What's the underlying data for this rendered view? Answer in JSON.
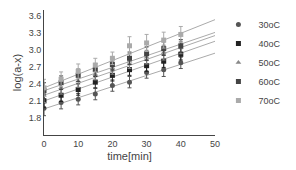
{
  "chart_data": {
    "type": "scatter",
    "xlabel": "time[min]",
    "ylabel": "log(a-x)",
    "xlim": [
      0,
      50
    ],
    "ylim": [
      1.5,
      3.7
    ],
    "xticks": [
      0,
      10,
      20,
      30,
      40,
      50
    ],
    "yticks": [
      1.8,
      2.1,
      2.4,
      2.7,
      {
        "value": 3.0,
        "label": "3.0"
      },
      3.3,
      3.6
    ],
    "grid": false,
    "legend": "right",
    "x": [
      0,
      5,
      10,
      15,
      20,
      25,
      30,
      35,
      40
    ],
    "series": [
      {
        "name": "30oC",
        "color": "#555555",
        "marker": "circle",
        "values": [
          1.97,
          2.07,
          2.13,
          2.22,
          2.37,
          2.43,
          2.6,
          2.65,
          2.77
        ],
        "yerr": [
          0.13,
          0.11,
          0.1,
          0.1,
          0.1,
          0.1,
          0.1,
          0.12,
          0.1
        ],
        "trend": {
          "slope": 0.0196,
          "intercept": 1.96,
          "color": "#aaaaaa"
        }
      },
      {
        "name": "40oC",
        "color": "#222222",
        "marker": "square",
        "values": [
          2.1,
          2.2,
          2.3,
          2.43,
          2.55,
          2.65,
          2.72,
          2.8,
          2.92
        ],
        "yerr": [
          0.12,
          0.11,
          0.1,
          0.1,
          0.1,
          0.1,
          0.1,
          0.11,
          0.1
        ],
        "trend": {
          "slope": 0.021,
          "intercept": 2.1,
          "color": "#aaaaaa"
        }
      },
      {
        "name": "50oC",
        "color": "#888888",
        "marker": "triangle-up",
        "values": [
          2.2,
          2.33,
          2.45,
          2.57,
          2.68,
          2.8,
          2.87,
          2.95,
          3.04
        ],
        "yerr": [
          0.13,
          0.11,
          0.11,
          0.1,
          0.11,
          0.13,
          0.12,
          0.13,
          0.11
        ],
        "trend": {
          "slope": 0.021,
          "intercept": 2.2,
          "color": "#aaaaaa"
        }
      },
      {
        "name": "60oC",
        "color": "#444444",
        "marker": "square",
        "values": [
          2.28,
          2.42,
          2.55,
          2.65,
          2.74,
          2.85,
          2.93,
          3.02,
          3.07
        ],
        "yerr": [
          0.14,
          0.12,
          0.11,
          0.11,
          0.11,
          0.11,
          0.12,
          0.12,
          0.11
        ],
        "trend": {
          "slope": 0.0205,
          "intercept": 2.28,
          "color": "#aaaaaa"
        }
      },
      {
        "name": "70oC",
        "color": "#aaaaaa",
        "marker": "square",
        "values": [
          2.33,
          2.48,
          2.62,
          2.73,
          2.85,
          3.07,
          3.12,
          3.17,
          3.27
        ],
        "yerr": [
          0.15,
          0.13,
          0.13,
          0.12,
          0.11,
          0.16,
          0.15,
          0.14,
          0.14
        ],
        "trend": {
          "slope": 0.024,
          "intercept": 2.33,
          "color": "#aaaaaa"
        }
      }
    ]
  }
}
